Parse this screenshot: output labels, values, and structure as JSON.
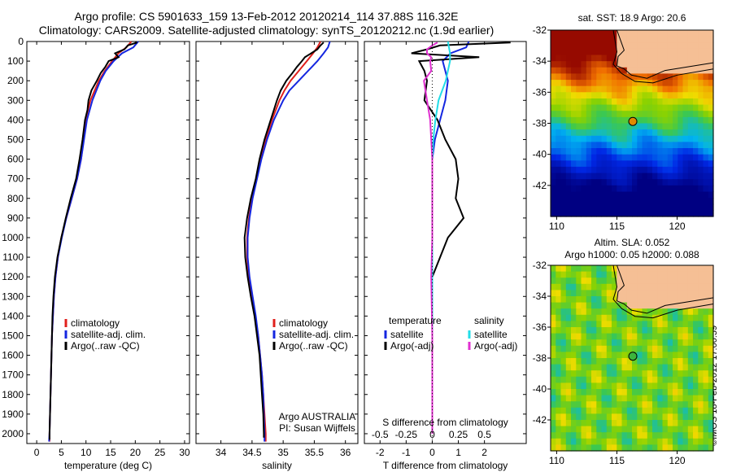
{
  "header": {
    "line1": "Argo profile: CS 5901633_159 13-Feb-2012 20120214_114 37.88S 116.32E",
    "line2": "Climatology: CARS2009. Satellite-adjusted climatology: synTS_20120212.nc (1.9d earlier)"
  },
  "stamp": "©IMOS 18-Feb-2012 17:00:59",
  "colors": {
    "climatology": "#e0201c",
    "satellite": "#1426e0",
    "argo": "#000000",
    "sat_salinity": "#22dde8",
    "argo_salinity": "#e030d0",
    "land": "#f5bf95"
  },
  "chart_data": [
    {
      "type": "line",
      "panel": "temperature",
      "xlabel": "temperature (deg C)",
      "ylabel": "",
      "xlim": [
        -2,
        31
      ],
      "ylim": [
        2050,
        0
      ],
      "xticks": [
        "0",
        "5",
        "10",
        "15",
        "20",
        "25",
        "30"
      ],
      "xtick_values": [
        0,
        5,
        10,
        15,
        20,
        25,
        30
      ],
      "yticks": [
        "0",
        "100",
        "200",
        "300",
        "400",
        "500",
        "600",
        "700",
        "800",
        "900",
        "1000",
        "1100",
        "1200",
        "1300",
        "1400",
        "1500",
        "1600",
        "1700",
        "1800",
        "1900",
        "2000"
      ],
      "ytick_values": [
        0,
        100,
        200,
        300,
        400,
        500,
        600,
        700,
        800,
        900,
        1000,
        1100,
        1200,
        1300,
        1400,
        1500,
        1600,
        1700,
        1800,
        1900,
        2000
      ],
      "legend": [
        "climatology",
        "satellite-adj. clim.",
        "Argo(..raw -QC)"
      ],
      "series": [
        {
          "name": "climatology",
          "color": "#e0201c",
          "depth": [
            0,
            30,
            60,
            100,
            150,
            200,
            300,
            400,
            500,
            600,
            700,
            800,
            900,
            1000,
            1100,
            1200,
            1300,
            1400,
            1500,
            1600,
            1700,
            1800,
            1900,
            2000,
            2040
          ],
          "values": [
            19.2,
            18.2,
            16.6,
            15.3,
            13.8,
            12.6,
            10.9,
            9.9,
            9.5,
            9.0,
            8.2,
            7.1,
            6.0,
            5.0,
            4.3,
            3.8,
            3.5,
            3.3,
            3.1,
            3.0,
            2.9,
            2.8,
            2.7,
            2.6,
            2.6
          ]
        },
        {
          "name": "satellite-adj. clim.",
          "color": "#1426e0",
          "depth": [
            0,
            30,
            60,
            100,
            150,
            200,
            300,
            400,
            500,
            600,
            700,
            800,
            900,
            1000,
            1100,
            1200,
            1300,
            1400,
            1500,
            1600,
            1700,
            1800,
            1900,
            2000,
            2040
          ],
          "values": [
            20.6,
            19.6,
            17.3,
            15.6,
            14.0,
            12.9,
            11.3,
            10.2,
            9.6,
            9.0,
            8.2,
            7.1,
            6.0,
            5.1,
            4.3,
            3.8,
            3.5,
            3.3,
            3.1,
            3.0,
            2.9,
            2.8,
            2.7,
            2.6,
            2.5
          ]
        },
        {
          "name": "Argo(..raw -QC)",
          "color": "#000000",
          "depth": [
            5,
            20,
            40,
            60,
            80,
            100,
            130,
            160,
            200,
            250,
            300,
            350,
            400,
            500,
            600,
            700,
            800,
            900,
            1000,
            1100,
            1200,
            1300,
            1400,
            1500,
            1600,
            1700,
            1800,
            1900,
            2000,
            2030
          ],
          "values": [
            20.4,
            18.5,
            17.8,
            15.9,
            16.6,
            14.6,
            13.9,
            13.0,
            12.2,
            11.1,
            10.5,
            10.3,
            9.8,
            9.3,
            8.7,
            8.0,
            6.9,
            5.9,
            5.0,
            4.2,
            3.7,
            3.4,
            3.2,
            3.1,
            3.0,
            2.9,
            2.8,
            2.7,
            2.6,
            2.6
          ]
        }
      ]
    },
    {
      "type": "line",
      "panel": "salinity",
      "xlabel": "salinity",
      "xlim": [
        33.6,
        36.2
      ],
      "ylim": [
        2050,
        0
      ],
      "xticks": [
        "34",
        "34.5",
        "35",
        "35.5",
        "36"
      ],
      "xtick_values": [
        34,
        34.5,
        35,
        35.5,
        36
      ],
      "legend": [
        "climatology",
        "satellite-adj. clim.",
        "Argo(..raw -QC)"
      ],
      "annotation": [
        "Argo AUSTRALIA",
        "PI: Susan Wijffels"
      ],
      "series": [
        {
          "name": "climatology",
          "color": "#e0201c",
          "depth": [
            0,
            30,
            60,
            100,
            150,
            200,
            250,
            300,
            400,
            500,
            600,
            700,
            800,
            900,
            1000,
            1100,
            1200,
            1300,
            1400,
            1500,
            1600,
            1700,
            1800,
            1900,
            2000,
            2040
          ],
          "values": [
            35.6,
            35.55,
            35.48,
            35.38,
            35.25,
            35.12,
            35.02,
            34.94,
            34.82,
            34.72,
            34.64,
            34.57,
            34.5,
            34.45,
            34.42,
            34.42,
            34.45,
            34.5,
            34.55,
            34.6,
            34.63,
            34.66,
            34.68,
            34.7,
            34.72,
            34.72
          ]
        },
        {
          "name": "satellite-adj. clim.",
          "color": "#1426e0",
          "depth": [
            0,
            30,
            60,
            100,
            150,
            200,
            250,
            300,
            400,
            500,
            600,
            700,
            800,
            900,
            1000,
            1100,
            1200,
            1300,
            1400,
            1500,
            1600,
            1700,
            1800,
            1900,
            2000,
            2040
          ],
          "values": [
            35.75,
            35.72,
            35.65,
            35.55,
            35.4,
            35.25,
            35.1,
            35.0,
            34.85,
            34.74,
            34.65,
            34.58,
            34.51,
            34.46,
            34.43,
            34.43,
            34.46,
            34.51,
            34.56,
            34.6,
            34.63,
            34.66,
            34.68,
            34.69,
            34.7,
            34.7
          ]
        },
        {
          "name": "Argo(..raw -QC)",
          "color": "#000000",
          "depth": [
            5,
            20,
            40,
            60,
            80,
            100,
            130,
            160,
            200,
            250,
            300,
            350,
            400,
            450,
            500,
            600,
            700,
            800,
            900,
            1000,
            1100,
            1200,
            1300,
            1400,
            1500,
            1600,
            1700,
            1800,
            1900,
            2000,
            2020
          ],
          "values": [
            35.65,
            35.6,
            35.55,
            35.45,
            35.35,
            35.3,
            35.22,
            35.15,
            35.05,
            34.96,
            34.9,
            34.85,
            34.8,
            34.75,
            34.7,
            34.62,
            34.56,
            34.48,
            34.42,
            34.38,
            34.39,
            34.43,
            34.48,
            34.54,
            34.58,
            34.62,
            34.64,
            34.66,
            34.68,
            34.69,
            34.69
          ]
        }
      ]
    },
    {
      "type": "line",
      "panel": "difference",
      "xlabel": "T difference from climatology",
      "xlabel2": "S difference from climatology",
      "xlim": [
        -2.6,
        3.6
      ],
      "ylim": [
        2050,
        0
      ],
      "xticks": [
        "-2",
        "-1",
        "0",
        "1",
        "2"
      ],
      "xtick_values": [
        -2,
        -1,
        0,
        1,
        2
      ],
      "xticks2": [
        "-0.5",
        "-0.25",
        "0",
        "0.25",
        "0.5"
      ],
      "xtick2_values": [
        -0.5,
        -0.25,
        0,
        0.25,
        0.5
      ],
      "legend_temperature": [
        "temperature",
        "satellite",
        "Argo(-adj)"
      ],
      "legend_salinity": [
        "salinity",
        "satellite",
        "Argo(-adj)"
      ],
      "series": [
        {
          "name": "satellite",
          "quantity": "T",
          "color": "#1426e0",
          "depth": [
            0,
            30,
            60,
            100,
            150,
            200,
            300,
            400,
            500,
            600,
            700,
            800,
            900,
            1000,
            1200,
            1500,
            1800,
            2000
          ],
          "values": [
            1.4,
            1.3,
            0.7,
            0.4,
            0.5,
            0.6,
            0.5,
            0.3,
            0.1,
            0.0,
            0.0,
            0.0,
            0.0,
            0.0,
            0.0,
            0.0,
            0.0,
            0.0
          ]
        },
        {
          "name": "Argo(-adj)",
          "quantity": "T",
          "color": "#000000",
          "depth": [
            5,
            20,
            40,
            60,
            80,
            100,
            150,
            200,
            300,
            400,
            500,
            600,
            700,
            800,
            900,
            1000,
            1200,
            1500,
            1800,
            2000
          ],
          "values": [
            3.0,
            0.3,
            -0.2,
            -0.8,
            1.8,
            -0.5,
            -0.3,
            -0.2,
            -0.3,
            0.2,
            0.5,
            0.9,
            1.0,
            0.9,
            1.2,
            0.6,
            0.0,
            0.0,
            0.0,
            0.0
          ]
        },
        {
          "name": "satellite",
          "quantity": "S",
          "color": "#22dde8",
          "depth": [
            0,
            30,
            60,
            100,
            150,
            200,
            300,
            400,
            500,
            600,
            700,
            800,
            1000,
            1200,
            1500,
            1800,
            2000
          ],
          "values": [
            0.15,
            0.16,
            0.17,
            0.17,
            0.15,
            0.13,
            0.06,
            0.03,
            0.01,
            0.0,
            0.0,
            0.0,
            0.0,
            0.0,
            0.0,
            0.0,
            0.0
          ]
        },
        {
          "name": "Argo(-adj)",
          "quantity": "S",
          "color": "#e030d0",
          "depth": [
            5,
            20,
            40,
            60,
            80,
            100,
            150,
            200,
            300,
            400,
            500,
            600,
            800,
            1000,
            1200,
            1500,
            1800,
            2000
          ],
          "values": [
            0.05,
            0.0,
            -0.05,
            -0.05,
            -0.01,
            -0.02,
            -0.01,
            -0.08,
            -0.05,
            -0.02,
            -0.01,
            0.0,
            0.0,
            0.0,
            -0.01,
            0.0,
            0.0,
            0.0
          ]
        }
      ]
    },
    {
      "type": "heatmap",
      "panel": "sst-map",
      "title": "sat. SST: 18.9 Argo: 20.6",
      "xlim": [
        109.5,
        123
      ],
      "ylim": [
        -44,
        -32
      ],
      "xticks": [
        "110",
        "115",
        "120"
      ],
      "xtick_values": [
        110,
        115,
        120
      ],
      "yticks": [
        "-32",
        "-34",
        "-36",
        "-38",
        "-40",
        "-42"
      ],
      "ytick_values": [
        -32,
        -34,
        -36,
        -38,
        -40,
        -42
      ],
      "float_position": {
        "lon": 116.32,
        "lat": -37.88
      }
    },
    {
      "type": "heatmap",
      "panel": "sla-map",
      "title": "Altim. SLA: 0.052",
      "subtitle": "Argo h1000: 0.05 h2000: 0.088",
      "xlim": [
        109.5,
        123
      ],
      "ylim": [
        -44,
        -32
      ],
      "xticks": [
        "110",
        "115",
        "120"
      ],
      "xtick_values": [
        110,
        115,
        120
      ],
      "yticks": [
        "-32",
        "-34",
        "-36",
        "-38",
        "-40",
        "-42"
      ],
      "ytick_values": [
        -32,
        -34,
        -36,
        -38,
        -40,
        -42
      ],
      "float_position": {
        "lon": 116.32,
        "lat": -37.88
      }
    }
  ]
}
